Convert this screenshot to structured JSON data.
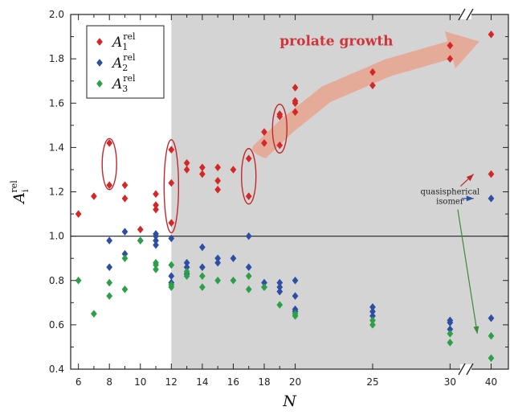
{
  "chart_data": {
    "type": "scatter",
    "title": "",
    "xlabel": "N",
    "ylabel": {
      "base": "A",
      "sub": "i",
      "sup": "rel"
    },
    "xlim": [
      5.5,
      40.5
    ],
    "ylim": [
      0.4,
      2.0
    ],
    "x_ticks": [
      "6",
      "8",
      "10",
      "12",
      "14",
      "16",
      "18",
      "20",
      "25",
      "30",
      "40"
    ],
    "y_ticks": [
      "0.4",
      "0.6",
      "0.8",
      "1.0",
      "1.2",
      "1.4",
      "1.6",
      "1.8",
      "2.0"
    ],
    "x_axis_break": "between 30 and 40",
    "reference_line": 1.0,
    "shaded_region": {
      "from_x": 12,
      "to_x": 40,
      "color": "#d4d4d4"
    },
    "legend_position": "top-left",
    "series": [
      {
        "name": {
          "base": "A",
          "sub": "1",
          "sup": "rel"
        },
        "color": "#d62728",
        "marker": "diamond",
        "points": [
          [
            6,
            1.1
          ],
          [
            7,
            1.18
          ],
          [
            8,
            1.42
          ],
          [
            8,
            1.23
          ],
          [
            9,
            1.23
          ],
          [
            9,
            1.17
          ],
          [
            10,
            1.03
          ],
          [
            11,
            1.19
          ],
          [
            11,
            1.14
          ],
          [
            11,
            1.12
          ],
          [
            12,
            1.39
          ],
          [
            12,
            1.24
          ],
          [
            12,
            1.06
          ],
          [
            13,
            1.33
          ],
          [
            13,
            1.3
          ],
          [
            14,
            1.31
          ],
          [
            14,
            1.28
          ],
          [
            15,
            1.31
          ],
          [
            15,
            1.25
          ],
          [
            15,
            1.21
          ],
          [
            16,
            1.3
          ],
          [
            17,
            1.35
          ],
          [
            17,
            1.18
          ],
          [
            18,
            1.47
          ],
          [
            18,
            1.42
          ],
          [
            19,
            1.55
          ],
          [
            19,
            1.54
          ],
          [
            19,
            1.41
          ],
          [
            20,
            1.67
          ],
          [
            20,
            1.61
          ],
          [
            20,
            1.6
          ],
          [
            20,
            1.56
          ],
          [
            25,
            1.74
          ],
          [
            25,
            1.68
          ],
          [
            30,
            1.86
          ],
          [
            30,
            1.8
          ],
          [
            40,
            1.91
          ],
          [
            40,
            1.28
          ]
        ]
      },
      {
        "name": {
          "base": "A",
          "sub": "2",
          "sup": "rel"
        },
        "color": "#2c4ea3",
        "marker": "diamond",
        "points": [
          [
            8,
            0.98
          ],
          [
            8,
            0.86
          ],
          [
            9,
            1.02
          ],
          [
            9,
            0.92
          ],
          [
            10,
            0.98
          ],
          [
            11,
            1.01
          ],
          [
            11,
            1.0
          ],
          [
            11,
            0.98
          ],
          [
            11,
            0.96
          ],
          [
            12,
            0.99
          ],
          [
            12,
            0.82
          ],
          [
            12,
            0.79
          ],
          [
            13,
            0.88
          ],
          [
            13,
            0.86
          ],
          [
            13,
            0.83
          ],
          [
            14,
            0.95
          ],
          [
            14,
            0.86
          ],
          [
            15,
            0.9
          ],
          [
            15,
            0.88
          ],
          [
            16,
            0.9
          ],
          [
            17,
            1.0
          ],
          [
            17,
            0.86
          ],
          [
            18,
            0.79
          ],
          [
            18,
            0.77
          ],
          [
            19,
            0.79
          ],
          [
            19,
            0.77
          ],
          [
            19,
            0.75
          ],
          [
            20,
            0.8
          ],
          [
            20,
            0.73
          ],
          [
            20,
            0.67
          ],
          [
            20,
            0.66
          ],
          [
            25,
            0.68
          ],
          [
            25,
            0.66
          ],
          [
            25,
            0.64
          ],
          [
            30,
            0.62
          ],
          [
            30,
            0.61
          ],
          [
            30,
            0.58
          ],
          [
            40,
            0.63
          ],
          [
            40,
            1.17
          ]
        ]
      },
      {
        "name": {
          "base": "A",
          "sub": "3",
          "sup": "rel"
        },
        "color": "#2ca048",
        "marker": "diamond",
        "points": [
          [
            6,
            0.8
          ],
          [
            7,
            0.65
          ],
          [
            8,
            0.79
          ],
          [
            8,
            0.73
          ],
          [
            9,
            0.9
          ],
          [
            9,
            0.76
          ],
          [
            10,
            0.98
          ],
          [
            11,
            0.88
          ],
          [
            11,
            0.87
          ],
          [
            11,
            0.85
          ],
          [
            12,
            0.87
          ],
          [
            12,
            0.78
          ],
          [
            12,
            0.77
          ],
          [
            13,
            0.84
          ],
          [
            13,
            0.82
          ],
          [
            14,
            0.82
          ],
          [
            14,
            0.77
          ],
          [
            15,
            0.8
          ],
          [
            16,
            0.8
          ],
          [
            17,
            0.82
          ],
          [
            17,
            0.76
          ],
          [
            18,
            0.77
          ],
          [
            19,
            0.69
          ],
          [
            20,
            0.65
          ],
          [
            20,
            0.64
          ],
          [
            25,
            0.62
          ],
          [
            25,
            0.6
          ],
          [
            30,
            0.56
          ],
          [
            30,
            0.52
          ],
          [
            40,
            0.55
          ],
          [
            40,
            0.45
          ]
        ]
      }
    ],
    "annotations": {
      "growth_label": "prolate growth",
      "quasi_label": [
        "quasispherical",
        "isomer"
      ]
    },
    "highlight_ellipses_at_N": [
      8,
      12,
      17,
      19
    ]
  }
}
